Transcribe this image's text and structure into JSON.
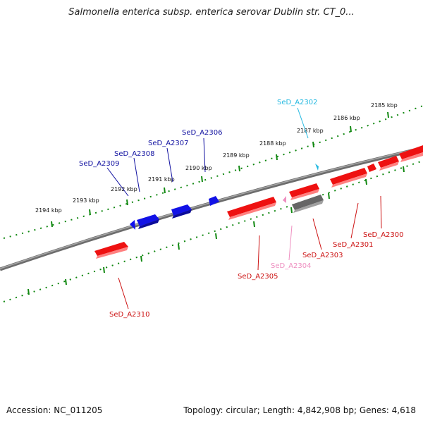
{
  "title": "Salmonella enterica subsp. enterica serovar Dublin str. CT_0...",
  "footer": {
    "accession": "Accession: NC_011205",
    "summary": "Topology: circular; Length: 4,842,908 bp; Genes: 4,618"
  },
  "colors": {
    "forward_gene": "#1010e0",
    "reverse_gene": "#ee1111",
    "pseudo_gene": "#666666",
    "rna_pink": "#ee8fc0",
    "cyan_gene": "#22b8e0",
    "tick": "#118811",
    "backbone": "#808080"
  },
  "scale": {
    "ticks": [
      {
        "label": "2185 kbp"
      },
      {
        "label": "2186 kbp"
      },
      {
        "label": "2187 kbp"
      },
      {
        "label": "2188 kbp"
      },
      {
        "label": "2189 kbp"
      },
      {
        "label": "2190 kbp"
      },
      {
        "label": "2191 kbp"
      },
      {
        "label": "2192 kbp"
      },
      {
        "label": "2193 kbp"
      },
      {
        "label": "2194 kbp"
      }
    ]
  },
  "genes": [
    {
      "name": "SeD_A2302",
      "strand": "forward",
      "color": "#22b8e0"
    },
    {
      "name": "SeD_A2306",
      "strand": "forward",
      "color": "#1010a0"
    },
    {
      "name": "SeD_A2307",
      "strand": "forward",
      "color": "#1010a0"
    },
    {
      "name": "SeD_A2308",
      "strand": "forward",
      "color": "#1010a0"
    },
    {
      "name": "SeD_A2309",
      "strand": "forward",
      "color": "#1010a0"
    },
    {
      "name": "SeD_A2300",
      "strand": "reverse",
      "color": "#cc1111"
    },
    {
      "name": "SeD_A2301",
      "strand": "reverse",
      "color": "#cc1111"
    },
    {
      "name": "SeD_A2303",
      "strand": "reverse",
      "color": "#cc1111"
    },
    {
      "name": "SeD_A2304",
      "strand": "reverse",
      "color": "#ee8fc0"
    },
    {
      "name": "SeD_A2305",
      "strand": "reverse",
      "color": "#cc1111"
    },
    {
      "name": "SeD_A2310",
      "strand": "reverse",
      "color": "#cc1111"
    }
  ]
}
